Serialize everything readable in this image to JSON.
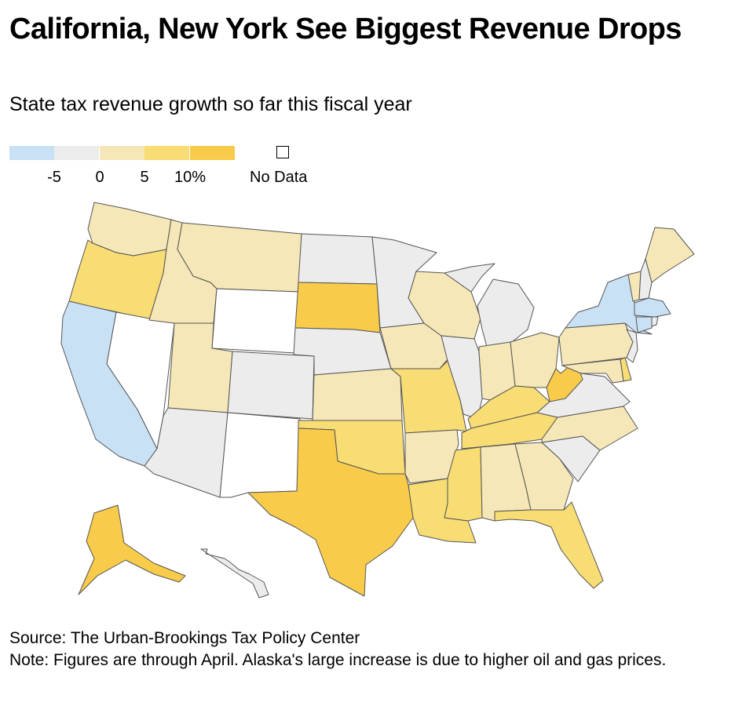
{
  "title": "California, New York See Biggest Revenue Drops",
  "subtitle": "State tax revenue growth so far this fiscal year",
  "legend": {
    "colors": [
      "#c9e1f5",
      "#ececec",
      "#f5e7b7",
      "#f8dc74",
      "#f8cb4a"
    ],
    "ticks": [
      "-5",
      "0",
      "5",
      "10%"
    ],
    "no_data_label": "No Data"
  },
  "source": "Source: The Urban-Brookings Tax Policy Center",
  "note": "Note: Figures are through April. Alaska's large increase is due to higher oil and gas prices.",
  "map_data": {
    "bins": [
      {
        "class": "below -5%",
        "color": "#c9e1f5",
        "states": [
          "CA",
          "NY",
          "MA",
          "CT"
        ]
      },
      {
        "class": "-5% to 0%",
        "color": "#ececec",
        "states": [
          "ND",
          "MN",
          "NE",
          "CO",
          "AZ",
          "IL",
          "MI",
          "VA",
          "SC",
          "NH",
          "RI",
          "NJ",
          "HI"
        ]
      },
      {
        "class": "0% to 5%",
        "color": "#f5e7b7",
        "states": [
          "WA",
          "ID",
          "MT",
          "UT",
          "KS",
          "IA",
          "WI",
          "IN",
          "OH",
          "PA",
          "AR",
          "AL",
          "GA",
          "NC",
          "ME",
          "VT",
          "MD"
        ]
      },
      {
        "class": "5% to 10%",
        "color": "#f8dc74",
        "states": [
          "OR",
          "OK",
          "MO",
          "KY",
          "TN",
          "MS",
          "LA",
          "FL",
          "DE"
        ]
      },
      {
        "class": "above 10%",
        "color": "#f8cb4a",
        "states": [
          "SD",
          "TX",
          "WV",
          "AK"
        ]
      },
      {
        "class": "No Data",
        "color": "#ffffff",
        "states": [
          "NV",
          "WY",
          "NM"
        ]
      }
    ]
  }
}
